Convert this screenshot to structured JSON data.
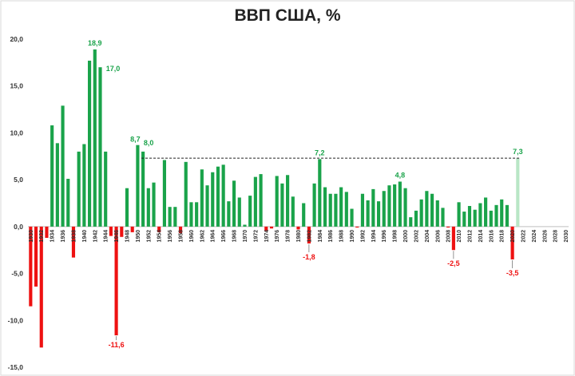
{
  "chart_data": {
    "type": "bar",
    "title": "ВВП США, %",
    "xlabel": "",
    "ylabel": "",
    "ylim": [
      -15,
      20
    ],
    "y_ticks": [
      "20,0",
      "15,0",
      "10,0",
      "5,0",
      "0,0",
      "-5,0",
      "-10,0",
      "-15,0"
    ],
    "x_tick_labels": [
      "1930",
      "1932",
      "1934",
      "1936",
      "1938",
      "1940",
      "1942",
      "1944",
      "1946",
      "1948",
      "1950",
      "1952",
      "1954",
      "1956",
      "1958",
      "1960",
      "1962",
      "1964",
      "1966",
      "1968",
      "1970",
      "1972",
      "1974",
      "1976",
      "1978",
      "1980",
      "1982",
      "1984",
      "1986",
      "1988",
      "1990",
      "1992",
      "1994",
      "1996",
      "1998",
      "2000",
      "2002",
      "2004",
      "2006",
      "2008",
      "2010",
      "2012",
      "2014",
      "2016",
      "2018",
      "2020",
      "2022",
      "2024",
      "2026",
      "2028",
      "2030"
    ],
    "x_range": [
      1930,
      2030
    ],
    "grid": false,
    "reference_line": {
      "value": 7.3,
      "from_year": 1951,
      "to_year": 2021,
      "style": "dashed"
    },
    "colors": {
      "positive": "#1aa34a",
      "negative": "#ee1111",
      "forecast": "#b9e6c6"
    },
    "years": [
      1930,
      1931,
      1932,
      1933,
      1934,
      1935,
      1936,
      1937,
      1938,
      1939,
      1940,
      1941,
      1942,
      1943,
      1944,
      1945,
      1946,
      1947,
      1948,
      1949,
      1950,
      1951,
      1952,
      1953,
      1954,
      1955,
      1956,
      1957,
      1958,
      1959,
      1960,
      1961,
      1962,
      1963,
      1964,
      1965,
      1966,
      1967,
      1968,
      1969,
      1970,
      1971,
      1972,
      1973,
      1974,
      1975,
      1976,
      1977,
      1978,
      1979,
      1980,
      1981,
      1982,
      1983,
      1984,
      1985,
      1986,
      1987,
      1988,
      1989,
      1990,
      1991,
      1992,
      1993,
      1994,
      1995,
      1996,
      1997,
      1998,
      1999,
      2000,
      2001,
      2002,
      2003,
      2004,
      2005,
      2006,
      2007,
      2008,
      2009,
      2010,
      2011,
      2012,
      2013,
      2014,
      2015,
      2016,
      2017,
      2018,
      2019,
      2020,
      2021
    ],
    "values": [
      -8.5,
      -6.4,
      -12.9,
      -1.2,
      10.8,
      8.9,
      12.9,
      5.1,
      -3.3,
      8.0,
      8.8,
      17.7,
      18.9,
      17.0,
      8.0,
      -1.0,
      -11.6,
      -1.1,
      4.1,
      -0.6,
      8.7,
      8.0,
      4.1,
      4.7,
      -0.6,
      7.1,
      2.1,
      2.1,
      -0.7,
      6.9,
      2.6,
      2.6,
      6.1,
      4.4,
      5.8,
      6.4,
      6.6,
      2.7,
      4.9,
      3.1,
      0.2,
      3.3,
      5.3,
      5.6,
      -0.5,
      -0.2,
      5.4,
      4.6,
      5.5,
      3.2,
      -0.3,
      2.5,
      -1.8,
      4.6,
      7.2,
      4.2,
      3.5,
      3.5,
      4.2,
      3.7,
      1.9,
      -0.1,
      3.5,
      2.8,
      4.0,
      2.7,
      3.8,
      4.4,
      4.5,
      4.8,
      4.1,
      1.0,
      1.7,
      2.9,
      3.8,
      3.5,
      2.8,
      2.0,
      -0.1,
      -2.5,
      2.6,
      1.6,
      2.2,
      1.8,
      2.5,
      3.1,
      1.7,
      2.3,
      2.9,
      2.3,
      -3.5,
      7.3
    ],
    "forecast_years": [
      2021
    ],
    "data_labels": [
      {
        "year": 1942,
        "text": "18,9",
        "color": "#1aa34a"
      },
      {
        "year": 1943,
        "text": "17,0",
        "color": "#1aa34a"
      },
      {
        "year": 1946,
        "text": "-11,6",
        "color": "#ee1111"
      },
      {
        "year": 1950,
        "text": "8,7",
        "color": "#1aa34a"
      },
      {
        "year": 1951,
        "text": "8,0",
        "color": "#1aa34a"
      },
      {
        "year": 1982,
        "text": "-1,8",
        "color": "#ee1111"
      },
      {
        "year": 1984,
        "text": "7,2",
        "color": "#1aa34a"
      },
      {
        "year": 1999,
        "text": "4,8",
        "color": "#1aa34a"
      },
      {
        "year": 2009,
        "text": "-2,5",
        "color": "#ee1111"
      },
      {
        "year": 2020,
        "text": "-3,5",
        "color": "#ee1111"
      },
      {
        "year": 2021,
        "text": "7,3",
        "color": "#1aa34a"
      }
    ]
  }
}
